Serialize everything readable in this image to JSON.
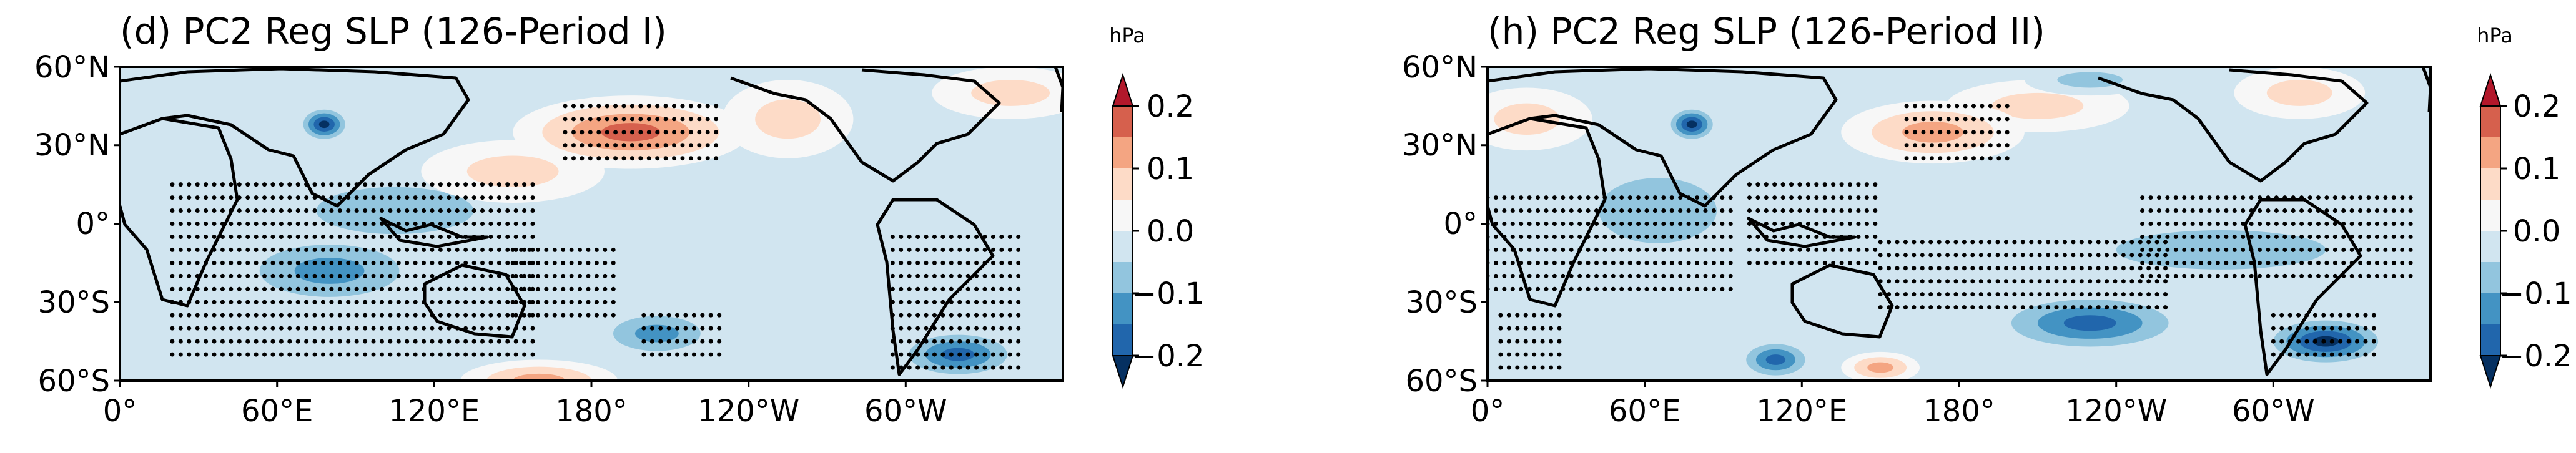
{
  "chart_data": [
    {
      "type": "heatmap",
      "title": "(d) PC2 Reg SLP (126-Period I)",
      "colorbar": {
        "units": "hPa",
        "ticks": [
          "0.2",
          "0.1",
          "0.0",
          "−0.1",
          "−0.2"
        ],
        "range": [
          -0.25,
          0.25
        ],
        "levels": [
          -0.25,
          -0.2,
          -0.15,
          -0.1,
          -0.05,
          0.0,
          0.05,
          0.1,
          0.15,
          0.2,
          0.25
        ],
        "colors": [
          "#053061",
          "#2166ac",
          "#4393c3",
          "#92c5de",
          "#d1e5f0",
          "#f7f7f7",
          "#fddbc7",
          "#f4a582",
          "#d6604d",
          "#b2182b"
        ],
        "extend": "both"
      },
      "x_ticks": [
        "0°",
        "60°E",
        "120°E",
        "180°",
        "120°W",
        "60°W"
      ],
      "y_ticks": [
        "60°N",
        "30°N",
        "0°",
        "30°S",
        "60°S"
      ],
      "lon_range": [
        0,
        360
      ],
      "lat_range": [
        -60,
        60
      ],
      "features": [
        {
          "lon": 60,
          "lat": 0,
          "value": -0.07,
          "rx": 35,
          "ry": 22
        },
        {
          "lon": 105,
          "lat": 5,
          "value": -0.1,
          "rx": 60,
          "ry": 18
        },
        {
          "lon": 150,
          "lat": 20,
          "value": 0.1,
          "rx": 35,
          "ry": 12
        },
        {
          "lon": 195,
          "lat": 35,
          "value": 0.2,
          "rx": 45,
          "ry": 14
        },
        {
          "lon": 255,
          "lat": 40,
          "value": 0.08,
          "rx": 25,
          "ry": 15
        },
        {
          "lon": 340,
          "lat": 50,
          "value": 0.08,
          "rx": 30,
          "ry": 10
        },
        {
          "lon": 78,
          "lat": 38,
          "value": -0.25,
          "rx": 10,
          "ry": 7
        },
        {
          "lon": 80,
          "lat": -18,
          "value": -0.15,
          "rx": 40,
          "ry": 15
        },
        {
          "lon": 205,
          "lat": -42,
          "value": -0.15,
          "rx": 25,
          "ry": 10
        },
        {
          "lon": 320,
          "lat": -50,
          "value": -0.2,
          "rx": 25,
          "ry": 10
        },
        {
          "lon": 160,
          "lat": -60,
          "value": 0.15,
          "rx": 30,
          "ry": 8
        },
        {
          "lon": 270,
          "lat": -20,
          "value": -0.05,
          "rx": 30,
          "ry": 10
        }
      ],
      "significance_regions": [
        {
          "lon": [
            20,
            160
          ],
          "lat": [
            -50,
            15
          ]
        },
        {
          "lon": [
            150,
            190
          ],
          "lat": [
            -35,
            -10
          ]
        },
        {
          "lon": [
            170,
            230
          ],
          "lat": [
            25,
            45
          ]
        },
        {
          "lon": [
            295,
            345
          ],
          "lat": [
            -55,
            -5
          ]
        },
        {
          "lon": [
            200,
            230
          ],
          "lat": [
            -50,
            -35
          ]
        }
      ]
    },
    {
      "type": "heatmap",
      "title": "(h) PC2 Reg SLP (126-Period II)",
      "colorbar": {
        "units": "hPa",
        "ticks": [
          "0.2",
          "0.1",
          "0.0",
          "−0.1",
          "−0.2"
        ],
        "range": [
          -0.25,
          0.25
        ],
        "levels": [
          -0.25,
          -0.2,
          -0.15,
          -0.1,
          -0.05,
          0.0,
          0.05,
          0.1,
          0.15,
          0.2,
          0.25
        ],
        "colors": [
          "#053061",
          "#2166ac",
          "#4393c3",
          "#92c5de",
          "#d1e5f0",
          "#f7f7f7",
          "#fddbc7",
          "#f4a582",
          "#d6604d",
          "#b2182b"
        ],
        "extend": "both"
      },
      "x_ticks": [
        "0°",
        "60°E",
        "120°E",
        "180°",
        "120°W",
        "60°W"
      ],
      "y_ticks": [
        "60°N",
        "30°N",
        "0°",
        "30°S",
        "60°S"
      ],
      "lon_range": [
        0,
        360
      ],
      "lat_range": [
        -60,
        60
      ],
      "features": [
        {
          "lon": 65,
          "lat": 5,
          "value": -0.08,
          "rx": 45,
          "ry": 25
        },
        {
          "lon": 130,
          "lat": 10,
          "value": -0.05,
          "rx": 40,
          "ry": 12
        },
        {
          "lon": 170,
          "lat": 35,
          "value": 0.15,
          "rx": 35,
          "ry": 12
        },
        {
          "lon": 210,
          "lat": 45,
          "value": 0.12,
          "rx": 35,
          "ry": 10
        },
        {
          "lon": 15,
          "lat": 40,
          "value": 0.12,
          "rx": 25,
          "ry": 12
        },
        {
          "lon": 78,
          "lat": 38,
          "value": -0.25,
          "rx": 10,
          "ry": 7
        },
        {
          "lon": 280,
          "lat": -10,
          "value": -0.1,
          "rx": 80,
          "ry": 15
        },
        {
          "lon": 230,
          "lat": -38,
          "value": -0.2,
          "rx": 40,
          "ry": 12
        },
        {
          "lon": 320,
          "lat": -45,
          "value": -0.25,
          "rx": 25,
          "ry": 10
        },
        {
          "lon": 110,
          "lat": -52,
          "value": -0.18,
          "rx": 15,
          "ry": 8
        },
        {
          "lon": 150,
          "lat": -55,
          "value": 0.15,
          "rx": 15,
          "ry": 6
        },
        {
          "lon": 230,
          "lat": 55,
          "value": -0.12,
          "rx": 25,
          "ry": 6
        },
        {
          "lon": 310,
          "lat": 50,
          "value": 0.08,
          "rx": 25,
          "ry": 10
        }
      ],
      "significance_regions": [
        {
          "lon": [
            0,
            95
          ],
          "lat": [
            -25,
            12
          ]
        },
        {
          "lon": [
            100,
            150
          ],
          "lat": [
            -15,
            15
          ]
        },
        {
          "lon": [
            150,
            260
          ],
          "lat": [
            -32,
            -5
          ]
        },
        {
          "lon": [
            250,
            355
          ],
          "lat": [
            -20,
            12
          ]
        },
        {
          "lon": [
            300,
            340
          ],
          "lat": [
            -50,
            -35
          ]
        },
        {
          "lon": [
            160,
            200
          ],
          "lat": [
            25,
            48
          ]
        },
        {
          "lon": [
            5,
            30
          ],
          "lat": [
            -55,
            -35
          ]
        }
      ]
    }
  ]
}
